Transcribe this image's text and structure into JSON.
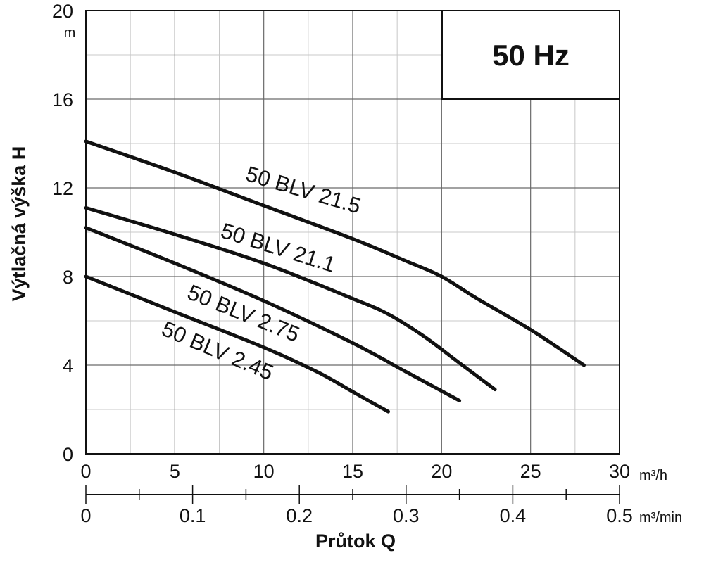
{
  "chart_data": {
    "type": "line",
    "title": "",
    "frequency_badge": "50 Hz",
    "xlabel": "Průtok Q",
    "ylabel": "Výtlačná výška H",
    "y_unit": "m",
    "x_unit": "m³/h",
    "x2_unit": "m³/min",
    "xlim": [
      0,
      30
    ],
    "ylim": [
      0,
      20
    ],
    "x_ticks": [
      0,
      5,
      10,
      15,
      20,
      25,
      30
    ],
    "x_tick_labels": [
      "0",
      "5",
      "10",
      "15",
      "20",
      "25",
      "30"
    ],
    "x2_ticks": [
      0,
      0.1,
      0.2,
      0.3,
      0.4,
      0.5
    ],
    "x2_tick_labels": [
      "0",
      "0.1",
      "0.2",
      "0.3",
      "0.4",
      "0.5"
    ],
    "y_ticks": [
      0,
      4,
      8,
      12,
      16,
      20
    ],
    "y_tick_labels": [
      "0",
      "4",
      "8",
      "12",
      "16",
      "20"
    ],
    "grid": true,
    "series": [
      {
        "name": "50 BLV 21.5",
        "points": [
          [
            0,
            14.1
          ],
          [
            5,
            12.7
          ],
          [
            10,
            11.2
          ],
          [
            15,
            9.7
          ],
          [
            18,
            8.7
          ],
          [
            20,
            8.0
          ],
          [
            22,
            7.0
          ],
          [
            25,
            5.6
          ],
          [
            28,
            4.0
          ]
        ]
      },
      {
        "name": "50 BLV 21.1",
        "points": [
          [
            0,
            11.1
          ],
          [
            5,
            9.9
          ],
          [
            10,
            8.6
          ],
          [
            15,
            7.0
          ],
          [
            17,
            6.3
          ],
          [
            19,
            5.3
          ],
          [
            21,
            4.1
          ],
          [
            23,
            2.9
          ]
        ]
      },
      {
        "name": "50 BLV 2.75",
        "points": [
          [
            0,
            10.2
          ],
          [
            5,
            8.6
          ],
          [
            10,
            6.9
          ],
          [
            15,
            5.0
          ],
          [
            18,
            3.7
          ],
          [
            21,
            2.4
          ]
        ]
      },
      {
        "name": "50 BLV 2.45",
        "points": [
          [
            0,
            8.0
          ],
          [
            5,
            6.4
          ],
          [
            10,
            4.8
          ],
          [
            13,
            3.7
          ],
          [
            15,
            2.8
          ],
          [
            17,
            1.9
          ]
        ]
      }
    ]
  }
}
